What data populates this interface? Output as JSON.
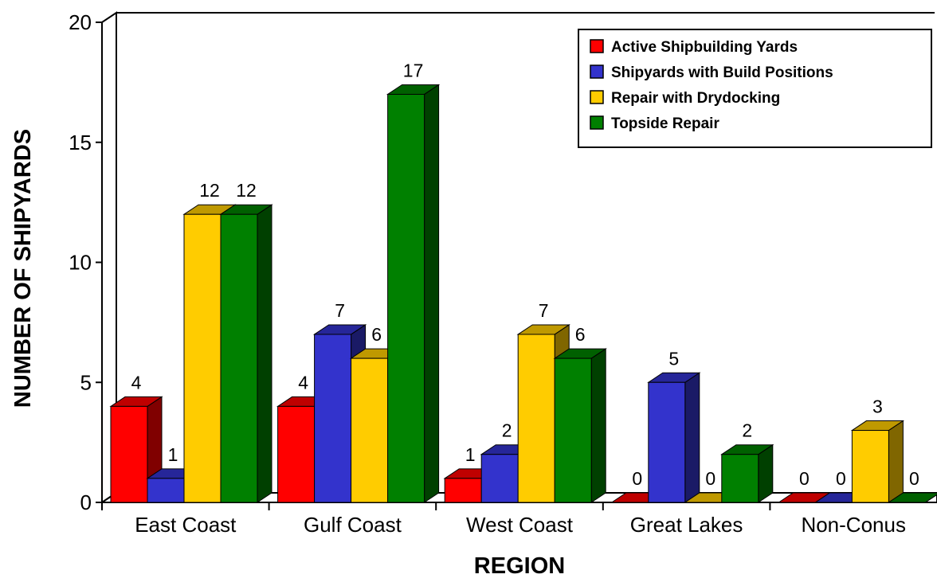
{
  "chart_data": {
    "type": "bar",
    "title": "",
    "xlabel": "REGION",
    "ylabel": "NUMBER OF SHIPYARDS",
    "ylim": [
      0,
      20
    ],
    "yticks": [
      "0",
      "5",
      "10",
      "15",
      "20"
    ],
    "categories": [
      "East Coast",
      "Gulf Coast",
      "West Coast",
      "Great Lakes",
      "Non-Conus"
    ],
    "series": [
      {
        "name": "Active Shipbuilding Yards",
        "values": [
          4,
          4,
          1,
          0,
          0
        ],
        "color": "#ff0000"
      },
      {
        "name": "Shipyards with Build Positions",
        "values": [
          1,
          7,
          2,
          5,
          0
        ],
        "color": "#3333cc"
      },
      {
        "name": "Repair with Drydocking",
        "values": [
          12,
          6,
          7,
          0,
          3
        ],
        "color": "#ffcc00"
      },
      {
        "name": "Topside Repair",
        "values": [
          12,
          17,
          6,
          2,
          0
        ],
        "color": "#008000"
      }
    ],
    "legend_position": "top-right",
    "grid": false,
    "style": "3d-bar"
  }
}
